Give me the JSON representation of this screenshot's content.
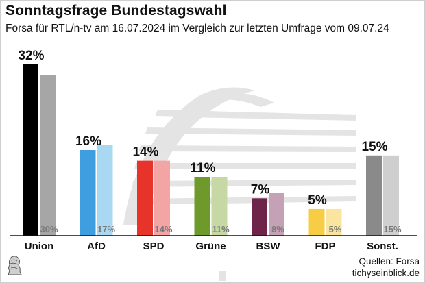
{
  "header": {
    "title": "Sonntagsfrage Bundestagswahl",
    "subtitle": "Forsa für RTL/n-tv am 16.07.2024 im Vergleich zur letzten Umfrage vom 09.07.24"
  },
  "footer": {
    "sources": "Quellen: Forsa",
    "site": "tichyseinblick.de"
  },
  "chart_data": {
    "type": "bar",
    "title": "Sonntagsfrage Bundestagswahl",
    "subtitle": "Forsa für RTL/n-tv am 16.07.2024 im Vergleich zur letzten Umfrage vom 09.07.24",
    "ylim": [
      0,
      32
    ],
    "categories": [
      "Union",
      "AfD",
      "SPD",
      "Grüne",
      "BSW",
      "FDP",
      "Sonst."
    ],
    "series": [
      {
        "values": [
          32,
          16,
          14,
          11,
          7,
          5,
          15
        ]
      },
      {
        "values": [
          30,
          17,
          14,
          11,
          8,
          5,
          15
        ]
      }
    ],
    "current_labels": [
      "32%",
      "16%",
      "14%",
      "11%",
      "7%",
      "5%",
      "15%"
    ],
    "previous_labels": [
      "30%",
      "17%",
      "14%",
      "11%",
      "8%",
      "5%",
      "15%"
    ],
    "colors_current": [
      "#000000",
      "#3f9ee0",
      "#e8332a",
      "#6e9a2c",
      "#6e2448",
      "#f7cd45",
      "#8a8a8a"
    ],
    "colors_previous": [
      "#a6a6a6",
      "#a9d8f3",
      "#f3a5a6",
      "#c6d8a4",
      "#c4a1b4",
      "#fbe59e",
      "#cfcfcf"
    ],
    "grid": false
  }
}
